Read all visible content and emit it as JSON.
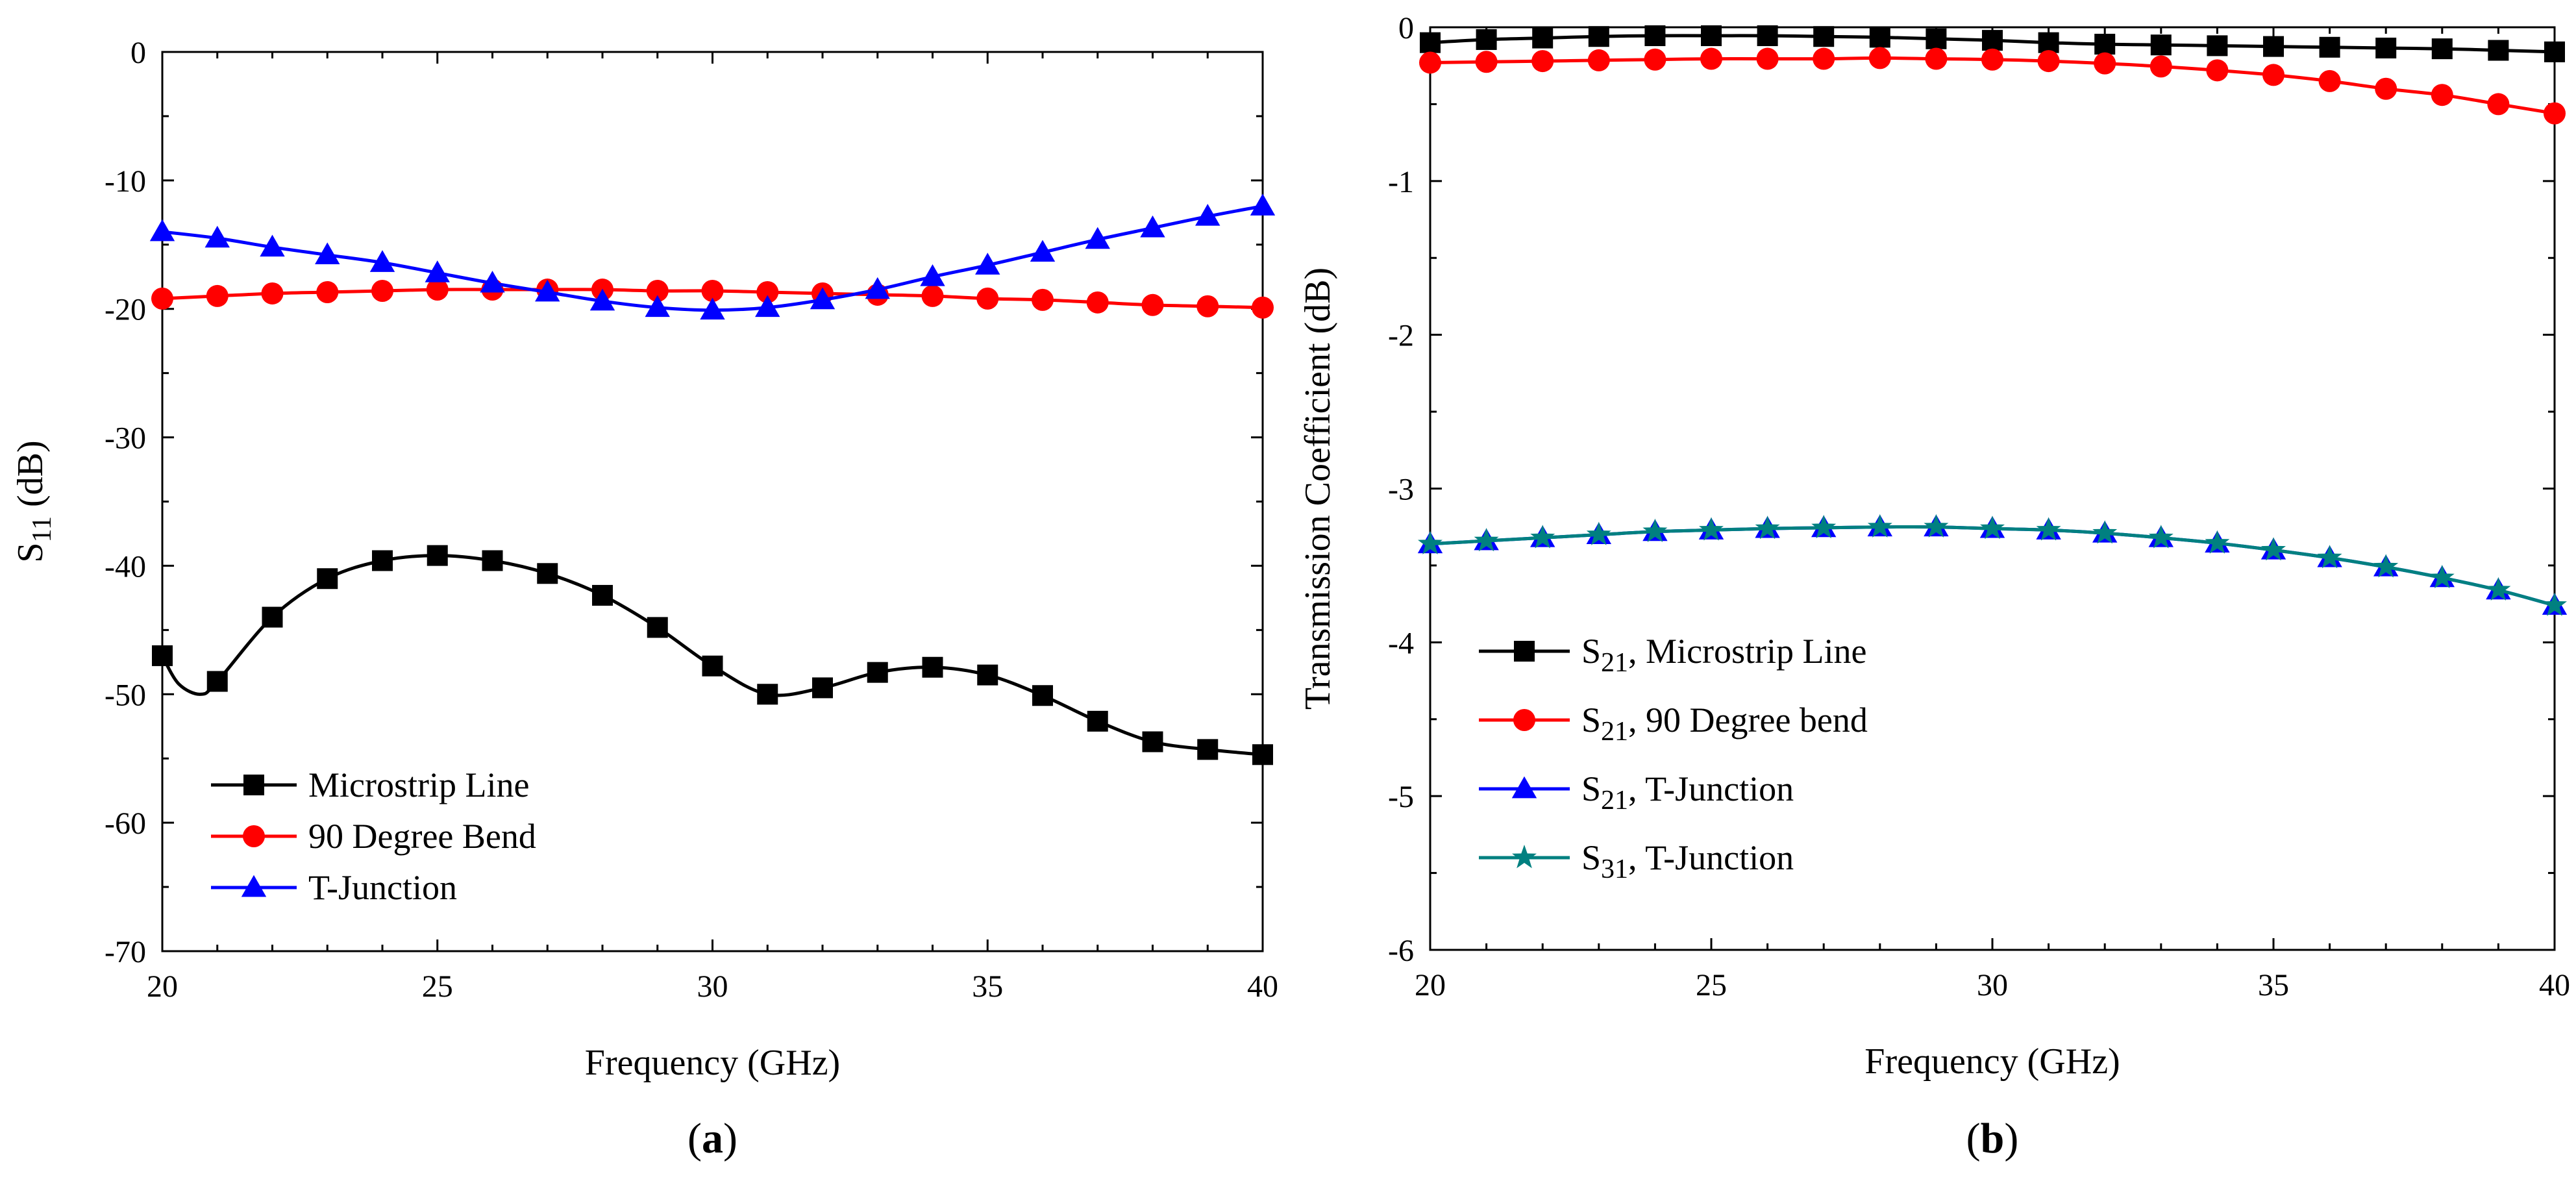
{
  "chart_data": [
    {
      "type": "line",
      "panel_label": {
        "open": "(",
        "letter": "a",
        "close": ")"
      },
      "xlabel": "Frequency (GHz)",
      "ylabel": {
        "main": "S",
        "sub": "11",
        "unit": " (dB)"
      },
      "xlim": [
        20,
        40
      ],
      "ylim": [
        -70,
        0
      ],
      "xticks": [
        20,
        25,
        30,
        35,
        40
      ],
      "yticks": [
        0,
        -10,
        -20,
        -30,
        -40,
        -50,
        -60,
        -70
      ],
      "legend_position": "bottom-left",
      "series": [
        {
          "name": "Microstrip Line",
          "label_main": "Microstrip Line",
          "label_sub": "",
          "label_rest": "",
          "color": "#000000",
          "marker": "square",
          "x": [
            20,
            21,
            22,
            23,
            24,
            25,
            26,
            27,
            28,
            29,
            30,
            31,
            32,
            33,
            34,
            35,
            36,
            37,
            38,
            39,
            40
          ],
          "y": [
            -47,
            -49,
            -44,
            -41,
            -39.6,
            -39.2,
            -39.6,
            -40.6,
            -42.3,
            -44.8,
            -47.8,
            -50,
            -49.5,
            -48.3,
            -47.9,
            -48.5,
            -50.1,
            -52.1,
            -53.7,
            -54.3,
            -54.7
          ],
          "curve": [
            [
              20,
              -47
            ],
            [
              20.3,
              -49.2
            ],
            [
              20.7,
              -50
            ],
            [
              21,
              -49
            ],
            [
              22,
              -44
            ],
            [
              23,
              -41
            ],
            [
              24,
              -39.6
            ],
            [
              25,
              -39.2
            ],
            [
              26,
              -39.6
            ],
            [
              27,
              -40.6
            ],
            [
              28,
              -42.3
            ],
            [
              29,
              -44.8
            ],
            [
              30,
              -47.8
            ],
            [
              31,
              -50
            ],
            [
              32,
              -49.5
            ],
            [
              33,
              -48.3
            ],
            [
              34,
              -47.9
            ],
            [
              35,
              -48.5
            ],
            [
              36,
              -50.1
            ],
            [
              37,
              -52.1
            ],
            [
              38,
              -53.7
            ],
            [
              39,
              -54.3
            ],
            [
              40,
              -54.7
            ]
          ]
        },
        {
          "name": "90 Degree Bend",
          "label_main": "90 Degree Bend",
          "label_sub": "",
          "label_rest": "",
          "color": "#ff0000",
          "marker": "circle",
          "x": [
            20,
            21,
            22,
            23,
            24,
            25,
            26,
            27,
            28,
            29,
            30,
            31,
            32,
            33,
            34,
            35,
            36,
            37,
            38,
            39,
            40
          ],
          "y": [
            -19.2,
            -19,
            -18.8,
            -18.7,
            -18.6,
            -18.5,
            -18.5,
            -18.5,
            -18.5,
            -18.6,
            -18.6,
            -18.7,
            -18.8,
            -18.9,
            -19,
            -19.2,
            -19.3,
            -19.5,
            -19.7,
            -19.8,
            -19.9
          ]
        },
        {
          "name": "T-Junction",
          "label_main": "T-Junction",
          "label_sub": "",
          "label_rest": "",
          "color": "#0000ff",
          "marker": "triangle",
          "x": [
            20,
            21,
            22,
            23,
            24,
            25,
            26,
            27,
            28,
            29,
            30,
            31,
            32,
            33,
            34,
            35,
            36,
            37,
            38,
            39,
            40
          ],
          "y": [
            -14,
            -14.5,
            -15.2,
            -15.8,
            -16.4,
            -17.2,
            -18,
            -18.7,
            -19.4,
            -19.9,
            -20.1,
            -19.9,
            -19.3,
            -18.5,
            -17.5,
            -16.6,
            -15.6,
            -14.6,
            -13.7,
            -12.8,
            -12
          ]
        }
      ]
    },
    {
      "type": "line",
      "panel_label": {
        "open": "(",
        "letter": "b",
        "close": ")"
      },
      "xlabel": "Frequency (GHz)",
      "ylabel": {
        "main": "Transmission Coefficient (dB)",
        "sub": "",
        "unit": ""
      },
      "xlim": [
        20,
        40
      ],
      "ylim": [
        -6,
        0
      ],
      "xticks": [
        20,
        25,
        30,
        35,
        40
      ],
      "yticks": [
        0,
        -1,
        -2,
        -3,
        -4,
        -5,
        -6
      ],
      "legend_position": "bottom-left",
      "series": [
        {
          "name": "S21, Microstrip Line",
          "label_main": "S",
          "label_sub": "21",
          "label_rest": ", Microstrip Line",
          "color": "#000000",
          "marker": "square",
          "x": [
            20,
            21,
            22,
            23,
            24,
            25,
            26,
            27,
            28,
            29,
            30,
            31,
            32,
            33,
            34,
            35,
            36,
            37,
            38,
            39,
            40
          ],
          "y": [
            -0.1,
            -0.08,
            -0.07,
            -0.06,
            -0.055,
            -0.055,
            -0.055,
            -0.06,
            -0.065,
            -0.075,
            -0.085,
            -0.1,
            -0.11,
            -0.115,
            -0.12,
            -0.125,
            -0.13,
            -0.135,
            -0.14,
            -0.15,
            -0.16
          ]
        },
        {
          "name": "S21, 90 Degree bend",
          "label_main": "S",
          "label_sub": "21",
          "label_rest": ", 90 Degree bend",
          "color": "#ff0000",
          "marker": "circle",
          "x": [
            20,
            21,
            22,
            23,
            24,
            25,
            26,
            27,
            28,
            29,
            30,
            31,
            32,
            33,
            34,
            35,
            36,
            37,
            38,
            39,
            40
          ],
          "y": [
            -0.23,
            -0.225,
            -0.22,
            -0.215,
            -0.21,
            -0.205,
            -0.205,
            -0.205,
            -0.2,
            -0.205,
            -0.21,
            -0.22,
            -0.235,
            -0.255,
            -0.28,
            -0.31,
            -0.35,
            -0.4,
            -0.44,
            -0.5,
            -0.56
          ]
        },
        {
          "name": "S21, T-Junction",
          "label_main": "S",
          "label_sub": "21",
          "label_rest": ", T-Junction",
          "color": "#0000ff",
          "marker": "triangle",
          "x": [
            20,
            21,
            22,
            23,
            24,
            25,
            26,
            27,
            28,
            29,
            30,
            31,
            32,
            33,
            34,
            35,
            36,
            37,
            38,
            39,
            40
          ],
          "y": [
            -3.36,
            -3.34,
            -3.32,
            -3.3,
            -3.28,
            -3.27,
            -3.26,
            -3.255,
            -3.25,
            -3.25,
            -3.26,
            -3.27,
            -3.29,
            -3.32,
            -3.355,
            -3.4,
            -3.45,
            -3.51,
            -3.58,
            -3.66,
            -3.76
          ]
        },
        {
          "name": "S31, T-Junction",
          "label_main": "S",
          "label_sub": "31",
          "label_rest": ", T-Junction",
          "color": "#008080",
          "marker": "star",
          "x": [
            20,
            21,
            22,
            23,
            24,
            25,
            26,
            27,
            28,
            29,
            30,
            31,
            32,
            33,
            34,
            35,
            36,
            37,
            38,
            39,
            40
          ],
          "y": [
            -3.36,
            -3.34,
            -3.32,
            -3.3,
            -3.28,
            -3.27,
            -3.26,
            -3.255,
            -3.25,
            -3.25,
            -3.26,
            -3.27,
            -3.29,
            -3.32,
            -3.355,
            -3.4,
            -3.45,
            -3.51,
            -3.58,
            -3.66,
            -3.76
          ]
        }
      ]
    }
  ]
}
